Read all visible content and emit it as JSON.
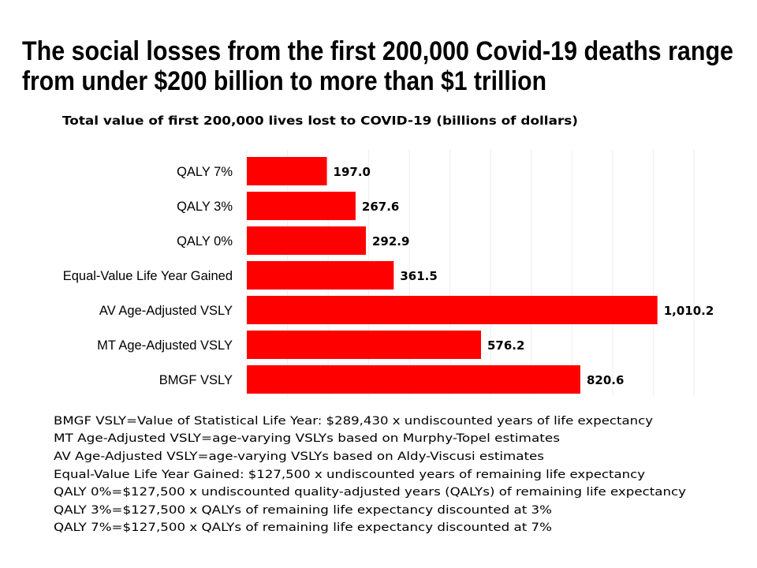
{
  "title_lines": [
    "The social losses from the first 200,000 Covid-19 deaths range",
    "from under $200 billion to more than $1 trillion"
  ],
  "chart_data": {
    "type": "bar",
    "orientation": "horizontal",
    "title": "Total value of first 200,000 lives lost to COVID-19 (billions of dollars)",
    "categories": [
      "QALY 7%",
      "QALY 3%",
      "QALY 0%",
      "Equal-Value Life Year Gained",
      "AV Age-Adjusted VSLY",
      "MT Age-Adjusted VSLY",
      "BMGF VSLY"
    ],
    "values": [
      197.0,
      267.6,
      292.9,
      361.5,
      1010.2,
      576.2,
      820.6
    ],
    "data_labels": [
      "197.0",
      "267.6",
      "292.9",
      "361.5",
      "1,010.2",
      "576.2",
      "820.6"
    ],
    "xlim": [
      0,
      1100
    ],
    "grid_step": 100,
    "grid": true,
    "bar_color": "#ff0000",
    "xlabel": "",
    "ylabel": ""
  },
  "notes": [
    "BMGF VSLY=Value of Statistical Life Year: $289,430 x undiscounted years of life expectancy",
    "MT Age-Adjusted VSLY=age-varying VSLYs based on Murphy-Topel estimates",
    "AV Age-Adjusted VSLY=age-varying VSLYs based on Aldy-Viscusi estimates",
    "Equal-Value Life Year Gained: $127,500 x undiscounted years of remaining life expectancy",
    "QALY 0%=$127,500 x undiscounted quality-adjusted years (QALYs) of remaining life expectancy",
    "QALY 3%=$127,500 x QALYs of remaining life expectancy discounted at 3%",
    "QALY 7%=$127,500 x QALYs of remaining life expectancy discounted at 7%"
  ]
}
